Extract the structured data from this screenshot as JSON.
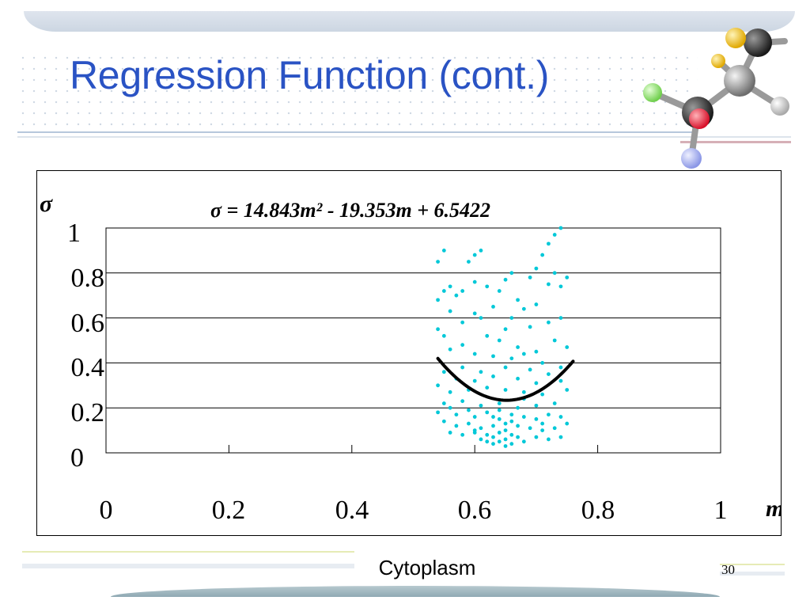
{
  "slide": {
    "title": "Regression Function (cont.)",
    "caption": "Cytoplasm",
    "page_number": "30"
  },
  "colors": {
    "title": "#2a53c4",
    "points": "#00c8d8",
    "curve": "#000000",
    "grid": "#000000"
  },
  "chart_data": {
    "type": "scatter",
    "equation": "σ = 14.843m² - 19.353m + 6.5422",
    "xlabel": "m",
    "ylabel": "σ",
    "xlim": [
      0,
      1
    ],
    "ylim": [
      0,
      1
    ],
    "x_ticks": [
      "0",
      "0.2",
      "0.4",
      "0.6",
      "0.8",
      "1"
    ],
    "y_ticks": [
      "0",
      "0.2",
      "0.4",
      "0.6",
      "0.8",
      "1"
    ],
    "grid": "horizontal",
    "series": [
      {
        "type": "scatter",
        "points": [
          [
            0.55,
            0.9
          ],
          [
            0.54,
            0.85
          ],
          [
            0.6,
            0.88
          ],
          [
            0.59,
            0.85
          ],
          [
            0.61,
            0.9
          ],
          [
            0.73,
            0.97
          ],
          [
            0.74,
            1.0
          ],
          [
            0.72,
            0.93
          ],
          [
            0.71,
            0.88
          ],
          [
            0.7,
            0.82
          ],
          [
            0.69,
            0.78
          ],
          [
            0.73,
            0.8
          ],
          [
            0.75,
            0.78
          ],
          [
            0.74,
            0.74
          ],
          [
            0.72,
            0.75
          ],
          [
            0.66,
            0.8
          ],
          [
            0.65,
            0.77
          ],
          [
            0.64,
            0.72
          ],
          [
            0.62,
            0.74
          ],
          [
            0.6,
            0.76
          ],
          [
            0.58,
            0.72
          ],
          [
            0.57,
            0.7
          ],
          [
            0.56,
            0.74
          ],
          [
            0.55,
            0.72
          ],
          [
            0.54,
            0.68
          ],
          [
            0.63,
            0.65
          ],
          [
            0.67,
            0.68
          ],
          [
            0.68,
            0.64
          ],
          [
            0.7,
            0.66
          ],
          [
            0.66,
            0.6
          ],
          [
            0.56,
            0.63
          ],
          [
            0.6,
            0.62
          ],
          [
            0.61,
            0.6
          ],
          [
            0.58,
            0.58
          ],
          [
            0.54,
            0.55
          ],
          [
            0.55,
            0.52
          ],
          [
            0.65,
            0.55
          ],
          [
            0.69,
            0.56
          ],
          [
            0.72,
            0.58
          ],
          [
            0.74,
            0.6
          ],
          [
            0.62,
            0.52
          ],
          [
            0.64,
            0.5
          ],
          [
            0.58,
            0.48
          ],
          [
            0.56,
            0.46
          ],
          [
            0.67,
            0.47
          ],
          [
            0.7,
            0.45
          ],
          [
            0.73,
            0.5
          ],
          [
            0.75,
            0.47
          ],
          [
            0.6,
            0.44
          ],
          [
            0.63,
            0.43
          ],
          [
            0.66,
            0.42
          ],
          [
            0.68,
            0.44
          ],
          [
            0.71,
            0.4
          ],
          [
            0.74,
            0.38
          ],
          [
            0.58,
            0.38
          ],
          [
            0.55,
            0.36
          ],
          [
            0.61,
            0.36
          ],
          [
            0.65,
            0.38
          ],
          [
            0.69,
            0.37
          ],
          [
            0.72,
            0.35
          ],
          [
            0.57,
            0.33
          ],
          [
            0.6,
            0.32
          ],
          [
            0.63,
            0.34
          ],
          [
            0.67,
            0.33
          ],
          [
            0.7,
            0.31
          ],
          [
            0.74,
            0.32
          ],
          [
            0.54,
            0.3
          ],
          [
            0.56,
            0.27
          ],
          [
            0.59,
            0.28
          ],
          [
            0.62,
            0.29
          ],
          [
            0.65,
            0.28
          ],
          [
            0.68,
            0.27
          ],
          [
            0.71,
            0.26
          ],
          [
            0.75,
            0.28
          ],
          [
            0.55,
            0.22
          ],
          [
            0.58,
            0.23
          ],
          [
            0.61,
            0.21
          ],
          [
            0.64,
            0.22
          ],
          [
            0.67,
            0.2
          ],
          [
            0.7,
            0.21
          ],
          [
            0.73,
            0.22
          ],
          [
            0.54,
            0.18
          ],
          [
            0.57,
            0.17
          ],
          [
            0.6,
            0.16
          ],
          [
            0.62,
            0.18
          ],
          [
            0.64,
            0.15
          ],
          [
            0.66,
            0.17
          ],
          [
            0.68,
            0.16
          ],
          [
            0.7,
            0.15
          ],
          [
            0.72,
            0.17
          ],
          [
            0.74,
            0.16
          ],
          [
            0.75,
            0.13
          ],
          [
            0.55,
            0.14
          ],
          [
            0.57,
            0.12
          ],
          [
            0.59,
            0.13
          ],
          [
            0.61,
            0.11
          ],
          [
            0.63,
            0.12
          ],
          [
            0.65,
            0.1
          ],
          [
            0.67,
            0.12
          ],
          [
            0.69,
            0.11
          ],
          [
            0.71,
            0.1
          ],
          [
            0.73,
            0.11
          ],
          [
            0.56,
            0.09
          ],
          [
            0.58,
            0.08
          ],
          [
            0.6,
            0.09
          ],
          [
            0.62,
            0.08
          ],
          [
            0.63,
            0.07
          ],
          [
            0.64,
            0.09
          ],
          [
            0.65,
            0.06
          ],
          [
            0.66,
            0.08
          ],
          [
            0.67,
            0.07
          ],
          [
            0.68,
            0.05
          ],
          [
            0.7,
            0.07
          ],
          [
            0.72,
            0.06
          ],
          [
            0.74,
            0.07
          ],
          [
            0.63,
            0.04
          ],
          [
            0.64,
            0.05
          ],
          [
            0.65,
            0.03
          ],
          [
            0.66,
            0.04
          ],
          [
            0.62,
            0.05
          ],
          [
            0.61,
            0.06
          ],
          [
            0.6,
            0.1
          ],
          [
            0.65,
            0.13
          ],
          [
            0.66,
            0.14
          ],
          [
            0.63,
            0.16
          ],
          [
            0.64,
            0.19
          ],
          [
            0.68,
            0.24
          ],
          [
            0.59,
            0.19
          ],
          [
            0.71,
            0.13
          ],
          [
            0.56,
            0.2
          ]
        ]
      },
      {
        "type": "line",
        "name": "σ = 14.843m² - 19.353m + 6.5422",
        "coefficients": [
          14.843,
          -19.353,
          6.5422
        ],
        "x_range": [
          0.54,
          0.76
        ]
      }
    ]
  }
}
